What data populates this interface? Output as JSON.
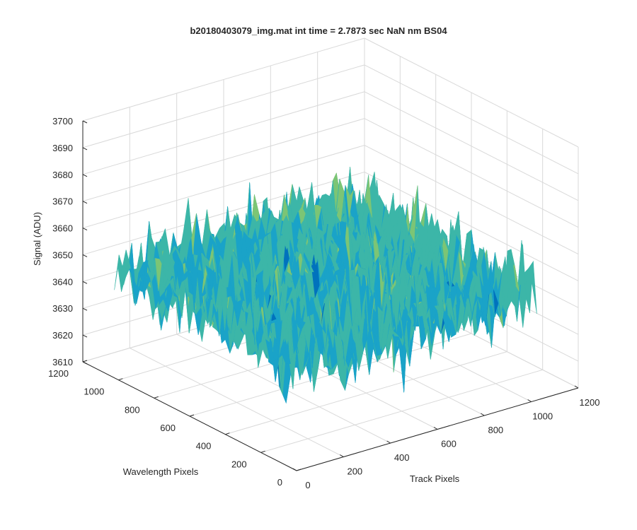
{
  "chart_data": {
    "type": "surface",
    "title": "b20180403079_img.mat int time = 2.7873 sec  NaN nm BS04",
    "xlabel": "Track Pixels",
    "ylabel": "Wavelength Pixels",
    "zlabel": "Signal (ADU)",
    "x_range": [
      0,
      1200
    ],
    "y_range": [
      0,
      1200
    ],
    "z_range": [
      3610,
      3700
    ],
    "x_ticks": [
      "0",
      "200",
      "400",
      "600",
      "800",
      "1000",
      "1200"
    ],
    "y_ticks": [
      "0",
      "200",
      "400",
      "600",
      "800",
      "1000",
      "1200"
    ],
    "z_ticks": [
      "3610",
      "3620",
      "3630",
      "3640",
      "3650",
      "3660",
      "3670",
      "3680",
      "3690",
      "3700"
    ],
    "grid": true,
    "data_extent": {
      "x": [
        1,
        1024
      ],
      "y": [
        1,
        1024
      ]
    },
    "signal_mean": 3650,
    "signal_spread": [
      3625,
      3680
    ],
    "colormap": [
      "#0072bd",
      "#1aa3c8",
      "#3cb6a8",
      "#7cc575",
      "#edb120"
    ]
  }
}
